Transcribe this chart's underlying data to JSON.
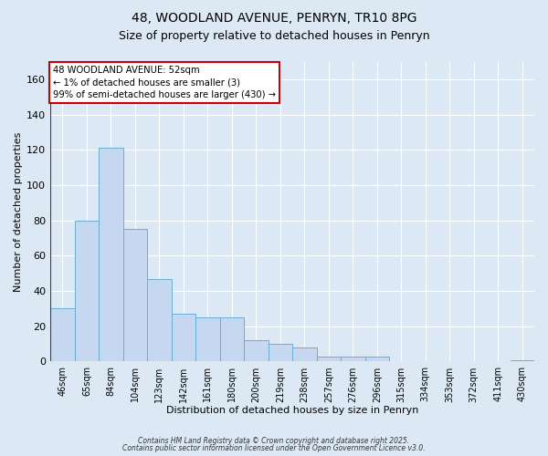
{
  "title_line1": "48, WOODLAND AVENUE, PENRYN, TR10 8PG",
  "title_line2": "Size of property relative to detached houses in Penryn",
  "xlabel": "Distribution of detached houses by size in Penryn",
  "ylabel": "Number of detached properties",
  "categories": [
    "46sqm",
    "65sqm",
    "84sqm",
    "104sqm",
    "123sqm",
    "142sqm",
    "161sqm",
    "180sqm",
    "200sqm",
    "219sqm",
    "238sqm",
    "257sqm",
    "276sqm",
    "296sqm",
    "315sqm",
    "334sqm",
    "353sqm",
    "372sqm",
    "411sqm",
    "430sqm"
  ],
  "values": [
    30,
    80,
    121,
    75,
    47,
    27,
    25,
    25,
    12,
    10,
    8,
    3,
    3,
    3,
    0,
    0,
    0,
    0,
    0,
    1
  ],
  "bar_color": "#c5d8ef",
  "bar_edge_color": "#6aaed6",
  "background_color": "#dce9f5",
  "plot_bg_color": "#dce9f5",
  "grid_color": "#ffffff",
  "annotation_line1": "48 WOODLAND AVENUE: 52sqm",
  "annotation_line2": "← 1% of detached houses are smaller (3)",
  "annotation_line3": "99% of semi-detached houses are larger (430) →",
  "annotation_box_facecolor": "#ffffff",
  "annotation_box_edgecolor": "#cc0000",
  "vline_color": "#cc0000",
  "ylim": [
    0,
    170
  ],
  "yticks": [
    0,
    20,
    40,
    60,
    80,
    100,
    120,
    140,
    160
  ],
  "footer_line1": "Contains HM Land Registry data © Crown copyright and database right 2025.",
  "footer_line2": "Contains public sector information licensed under the Open Government Licence v3.0."
}
